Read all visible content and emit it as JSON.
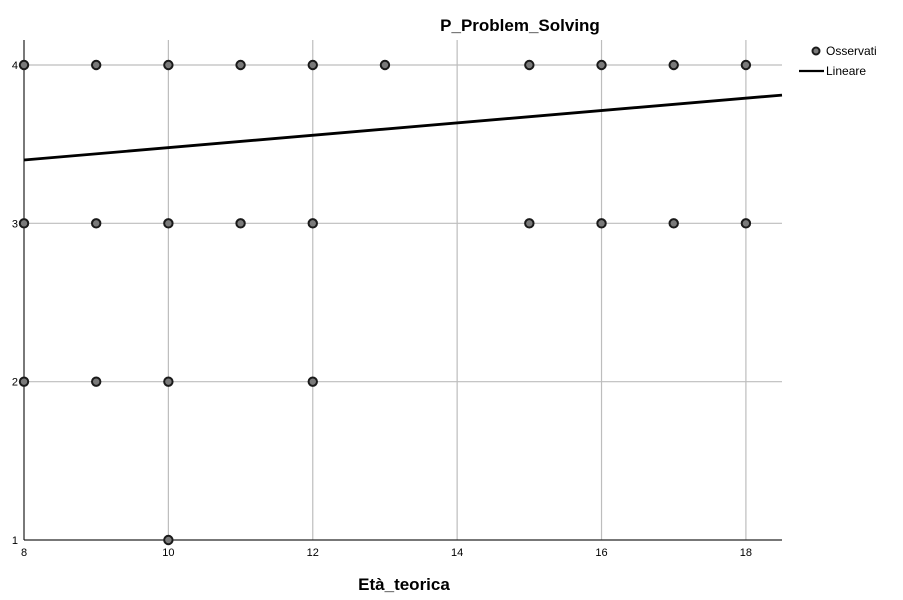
{
  "chart_data": {
    "type": "scatter",
    "title": "P_Problem_Solving",
    "xlabel": "Età_teorica",
    "ylabel": "",
    "xlim": [
      8,
      18.5
    ],
    "ylim": [
      1,
      4.15
    ],
    "xticks": [
      8,
      10,
      12,
      14,
      16,
      18
    ],
    "yticks": [
      1,
      2,
      3,
      4
    ],
    "grid": true,
    "legend_position": "top-right",
    "series": [
      {
        "name": "Osservati",
        "kind": "points",
        "points": [
          [
            8,
            4
          ],
          [
            9,
            4
          ],
          [
            10,
            4
          ],
          [
            11,
            4
          ],
          [
            12,
            4
          ],
          [
            13,
            4
          ],
          [
            15,
            4
          ],
          [
            16,
            4
          ],
          [
            17,
            4
          ],
          [
            18,
            4
          ],
          [
            8,
            3
          ],
          [
            9,
            3
          ],
          [
            10,
            3
          ],
          [
            11,
            3
          ],
          [
            12,
            3
          ],
          [
            15,
            3
          ],
          [
            16,
            3
          ],
          [
            17,
            3
          ],
          [
            18,
            3
          ],
          [
            8,
            2
          ],
          [
            9,
            2
          ],
          [
            10,
            2
          ],
          [
            12,
            2
          ],
          [
            10,
            1
          ]
        ]
      },
      {
        "name": "Lineare",
        "kind": "line",
        "points": [
          [
            8,
            3.4
          ],
          [
            18.5,
            3.81
          ]
        ]
      }
    ]
  }
}
